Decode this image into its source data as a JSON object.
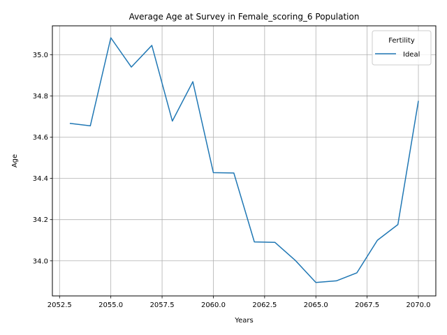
{
  "chart_data": {
    "type": "line",
    "title": "Average Age at Survey in Female_scoring_6 Population",
    "xlabel": "Years",
    "ylabel": "Age",
    "xlim": [
      2052.15,
      2070.85
    ],
    "ylim": [
      33.83,
      35.14
    ],
    "xticks": [
      2052.5,
      2055.0,
      2057.5,
      2060.0,
      2062.5,
      2065.0,
      2067.5,
      2070.0
    ],
    "xtick_labels": [
      "2052.5",
      "2055.0",
      "2057.5",
      "2060.0",
      "2062.5",
      "2065.0",
      "2067.5",
      "2070.0"
    ],
    "yticks": [
      34.0,
      34.2,
      34.4,
      34.6,
      34.8,
      35.0
    ],
    "ytick_labels": [
      "34.0",
      "34.2",
      "34.4",
      "34.6",
      "34.8",
      "35.0"
    ],
    "grid": true,
    "legend": {
      "title": "Fertility",
      "placement": "top-right"
    },
    "series": [
      {
        "name": "Ideal",
        "color": "#1f77b4",
        "x": [
          2053,
          2054,
          2055,
          2056,
          2057,
          2058,
          2059,
          2060,
          2061,
          2062,
          2063,
          2064,
          2065,
          2066,
          2067,
          2068,
          2069,
          2070
        ],
        "y": [
          34.667,
          34.655,
          35.082,
          34.94,
          35.045,
          34.678,
          34.869,
          34.428,
          34.426,
          34.092,
          34.09,
          34.002,
          33.895,
          33.903,
          33.942,
          34.1,
          34.176,
          34.776
        ]
      }
    ]
  }
}
